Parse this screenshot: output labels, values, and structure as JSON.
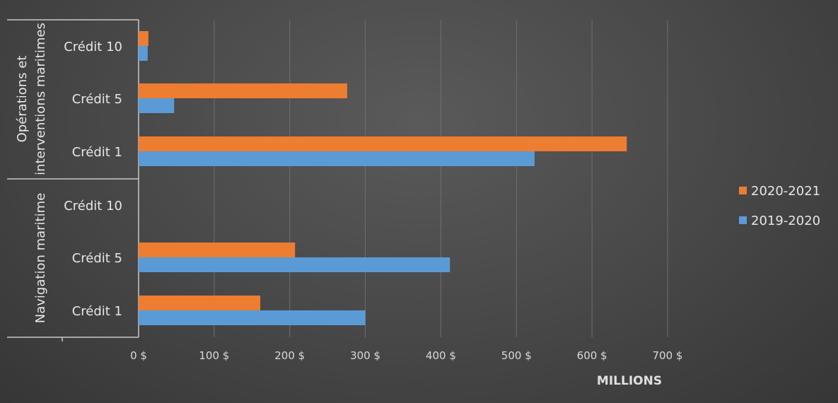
{
  "chart_data": {
    "type": "bar",
    "orientation": "horizontal",
    "groups": [
      {
        "name": "Opérations et interventions maritimes",
        "name_lines": [
          "Opérations et",
          "interventions maritimes"
        ],
        "categories": [
          "Crédit 10",
          "Crédit 5",
          "Crédit 1"
        ]
      },
      {
        "name": "Navigation maritime",
        "name_lines": [
          "Navigation maritime"
        ],
        "categories": [
          "Crédit 10",
          "Crédit 5",
          "Crédit 1"
        ]
      }
    ],
    "series": [
      {
        "name": "2020-2021",
        "color": "#ED7D31",
        "values": [
          13,
          276,
          646,
          0,
          207,
          161
        ]
      },
      {
        "name": "2019-2020",
        "color": "#5B9BD5",
        "values": [
          12,
          47,
          524,
          0,
          412,
          300
        ]
      }
    ],
    "xlabel": "MILLIONS",
    "xlim": [
      0,
      700
    ],
    "xticks": [
      0,
      100,
      200,
      300,
      400,
      500,
      600,
      700
    ],
    "xtick_labels": [
      "0 $",
      "100 $",
      "200 $",
      "300 $",
      "400 $",
      "500 $",
      "600 $",
      "700 $"
    ],
    "grid": true,
    "legend_position": "right"
  }
}
